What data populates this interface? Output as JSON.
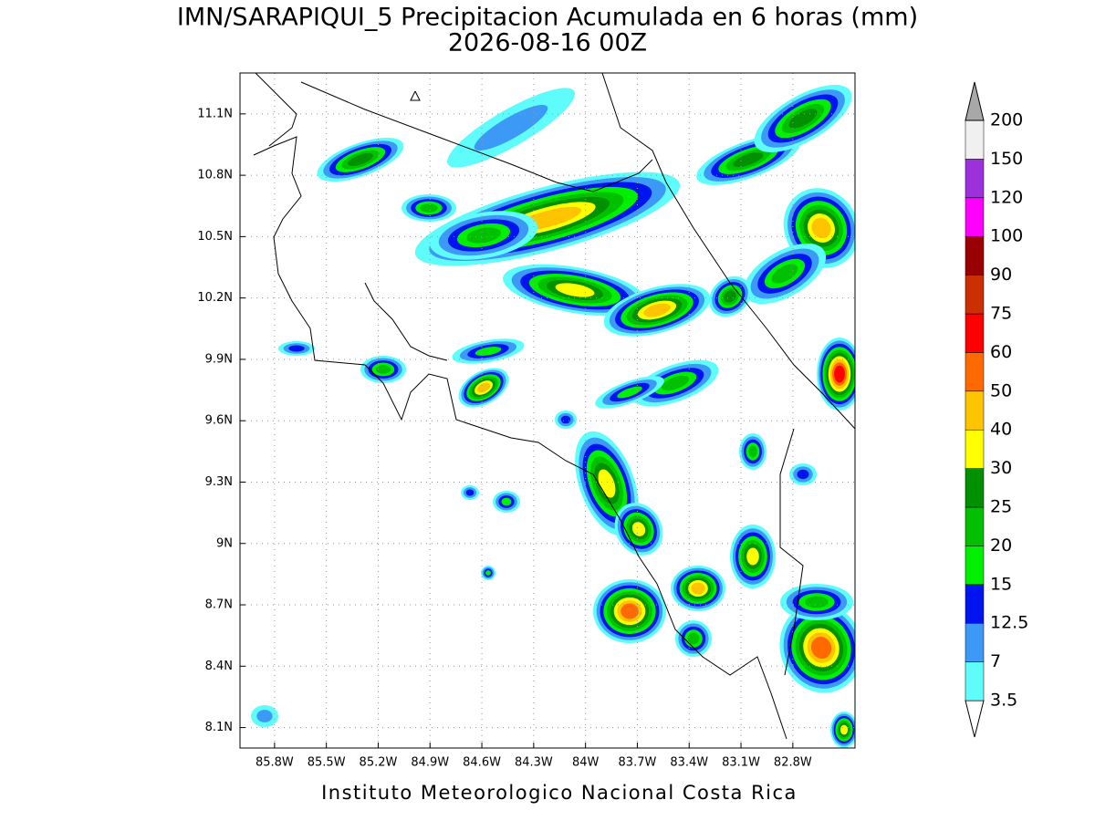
{
  "header": {
    "title": "IMN/SARAPIQUI_5 Precipitacion Acumulada en 6 horas (mm)",
    "subtitle": "2026-08-16 00Z"
  },
  "map": {
    "lon_range": [
      -86.0,
      -82.44
    ],
    "lat_range": [
      8.0,
      11.3
    ],
    "grid": true,
    "xticks": [
      {
        "value": -85.8,
        "label": "85.8W"
      },
      {
        "value": -85.5,
        "label": "85.5W"
      },
      {
        "value": -85.2,
        "label": "85.2W"
      },
      {
        "value": -84.9,
        "label": "84.9W"
      },
      {
        "value": -84.6,
        "label": "84.6W"
      },
      {
        "value": -84.3,
        "label": "84.3W"
      },
      {
        "value": -84.0,
        "label": "84W"
      },
      {
        "value": -83.7,
        "label": "83.7W"
      },
      {
        "value": -83.4,
        "label": "83.4W"
      },
      {
        "value": -83.1,
        "label": "83.1W"
      },
      {
        "value": -82.8,
        "label": "82.8W"
      }
    ],
    "yticks": [
      {
        "value": 8.1,
        "label": "8.1N"
      },
      {
        "value": 8.4,
        "label": "8.4N"
      },
      {
        "value": 8.7,
        "label": "8.7N"
      },
      {
        "value": 9.0,
        "label": "9N"
      },
      {
        "value": 9.3,
        "label": "9.3N"
      },
      {
        "value": 9.6,
        "label": "9.6N"
      },
      {
        "value": 9.9,
        "label": "9.9N"
      },
      {
        "value": 10.2,
        "label": "10.2N"
      },
      {
        "value": 10.5,
        "label": "10.5N"
      },
      {
        "value": 10.8,
        "label": "10.8N"
      },
      {
        "value": 11.1,
        "label": "11.1N"
      }
    ]
  },
  "colorbar": {
    "levels": [
      3.5,
      7,
      12.5,
      15,
      20,
      25,
      30,
      40,
      50,
      60,
      75,
      90,
      100,
      120,
      150,
      200
    ],
    "colors": [
      "#ffffff",
      "#5ffcfc",
      "#3c9af6",
      "#0014f0",
      "#00f000",
      "#00c000",
      "#009000",
      "#ffff00",
      "#ffc400",
      "#ff6a00",
      "#ff0000",
      "#cc2f00",
      "#9a0000",
      "#ff00ff",
      "#9b30dc",
      "#f0f0f0",
      "#a8a8a8"
    ]
  },
  "footer": "Instituto Meteorologico Nacional Costa Rica"
}
